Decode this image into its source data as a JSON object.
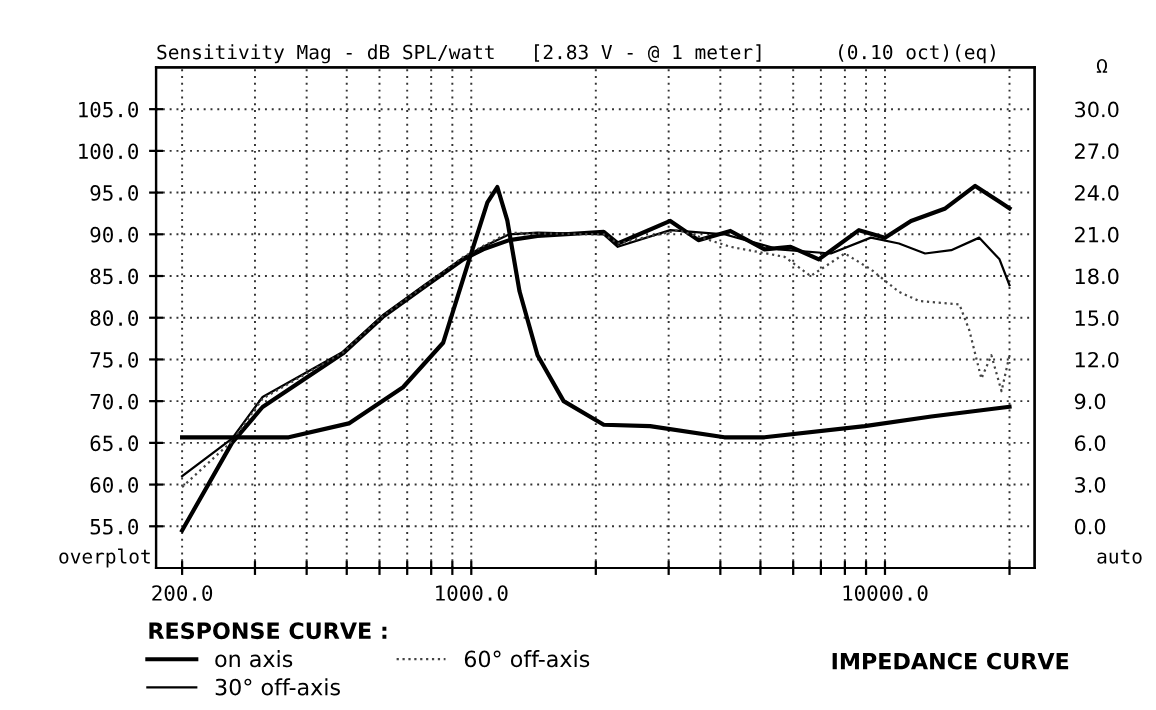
{
  "chart_data": {
    "type": "line",
    "title": "Sensitivity Mag - dB SPL/watt   [2.83 V - @ 1 meter]      (0.10 oct)(eq)",
    "legend_title": "RESPONSE CURVE :",
    "annotations": [
      "overplot",
      "auto",
      "Ω",
      "IMPEDANCE CURVE"
    ],
    "log": "x",
    "xlim": [
      173,
      23000
    ],
    "ylim": [
      50,
      110
    ],
    "xticks": [
      {
        "value": 200,
        "label": "200.0"
      },
      {
        "value": 300,
        "label": null
      },
      {
        "value": 400,
        "label": null
      },
      {
        "value": 500,
        "label": null
      },
      {
        "value": 600,
        "label": null
      },
      {
        "value": 700,
        "label": null
      },
      {
        "value": 800,
        "label": null
      },
      {
        "value": 900,
        "label": null
      },
      {
        "value": 1000,
        "label": "1000.0"
      },
      {
        "value": 2000,
        "label": null
      },
      {
        "value": 3000,
        "label": null
      },
      {
        "value": 4000,
        "label": null
      },
      {
        "value": 5000,
        "label": null
      },
      {
        "value": 6000,
        "label": null
      },
      {
        "value": 7000,
        "label": null
      },
      {
        "value": 8000,
        "label": null
      },
      {
        "value": 9000,
        "label": null
      },
      {
        "value": 10000,
        "label": "10000.0"
      },
      {
        "value": 20000,
        "label": null
      }
    ],
    "yticks": [
      {
        "value": 55,
        "label": "55.0"
      },
      {
        "value": 60,
        "label": "60.0"
      },
      {
        "value": 65,
        "label": "65.0"
      },
      {
        "value": 70,
        "label": "70.0"
      },
      {
        "value": 75,
        "label": "75.0"
      },
      {
        "value": 80,
        "label": "80.0"
      },
      {
        "value": 85,
        "label": "85.0"
      },
      {
        "value": 90,
        "label": "90.0"
      },
      {
        "value": 95,
        "label": "95.0"
      },
      {
        "value": 100,
        "label": "100.0"
      },
      {
        "value": 105,
        "label": "105.0"
      }
    ],
    "y2lim": [
      -3,
      33
    ],
    "y2ticks": [
      {
        "value": 0,
        "label": "0.0"
      },
      {
        "value": 3,
        "label": "3.0"
      },
      {
        "value": 6,
        "label": "6.0"
      },
      {
        "value": 9,
        "label": "9.0"
      },
      {
        "value": 12,
        "label": "12.0"
      },
      {
        "value": 15,
        "label": "15.0"
      },
      {
        "value": 18,
        "label": "18.0"
      },
      {
        "value": 21,
        "label": "21.0"
      },
      {
        "value": 24,
        "label": "24.0"
      },
      {
        "value": 27,
        "label": "27.0"
      },
      {
        "value": 30,
        "label": "30.0"
      }
    ],
    "grid": true,
    "legend": "bottom left",
    "marker": "none",
    "series": [
      {
        "name": "on axis",
        "color": "#000000",
        "line_style": "solid",
        "x": [
          200,
          264,
          313,
          489,
          611,
          765,
          957,
          1069,
          1236,
          1446,
          2090,
          2260,
          3027,
          3540,
          4230,
          5115,
          5915,
          6920,
          8650,
          10000,
          11560,
          13990,
          16520,
          18920,
          20000
        ],
        "values": [
          54.5,
          65,
          69.3,
          75.7,
          80.1,
          83.6,
          87.0,
          88.2,
          89.3,
          89.8,
          90.3,
          88.9,
          91.6,
          89.3,
          90.4,
          88.2,
          88.5,
          87.0,
          90.5,
          89.6,
          91.6,
          93.1,
          95.8,
          93.9,
          93.1
        ]
      },
      {
        "name": "30° off-axis",
        "color": "#000000",
        "line_style": "solid",
        "x": [
          200,
          264,
          313,
          489,
          611,
          765,
          957,
          1069,
          1236,
          1446,
          2090,
          2260,
          3027,
          4090,
          5532,
          7400,
          9245,
          10810,
          12500,
          14460,
          16900,
          18920,
          20000
        ],
        "values": [
          61.0,
          65.5,
          70.5,
          75.9,
          80.3,
          83.8,
          87.2,
          88.5,
          90.0,
          90.2,
          90.0,
          88.5,
          90.5,
          90.0,
          88.2,
          87.7,
          89.6,
          88.9,
          87.7,
          88.1,
          89.6,
          87.0,
          83.9
        ]
      },
      {
        "name": "60° off-axis",
        "color": "#444444",
        "line_style": "dotted",
        "x": [
          200,
          264,
          313,
          489,
          611,
          765,
          957,
          1069,
          1236,
          1446,
          2090,
          2260,
          3162,
          4230,
          5720,
          6610,
          8000,
          9245,
          10810,
          12100,
          15130,
          15990,
          17100,
          18080,
          19130,
          20000
        ],
        "values": [
          59.7,
          65.2,
          70.3,
          75.8,
          80.2,
          83.7,
          87.3,
          88.6,
          90.2,
          90.1,
          90.0,
          88.9,
          90.5,
          88.5,
          87.3,
          85.0,
          87.7,
          85.8,
          83.1,
          82.0,
          81.6,
          78.5,
          72.7,
          75.5,
          71.2,
          75.5
        ]
      },
      {
        "color": "#000000",
        "line_style": "solid",
        "axis": "y2",
        "x": [
          200,
          362,
          506,
          684,
          855,
          989,
          1094,
          1156,
          1222,
          1308,
          1446,
          1672,
          2090,
          2705,
          4090,
          5115,
          8935,
          12940,
          20000
        ],
        "values": [
          6.4,
          6.4,
          7.4,
          10.0,
          13.2,
          19.2,
          23.3,
          24.4,
          22.0,
          16.9,
          12.3,
          9.0,
          7.3,
          7.2,
          6.4,
          6.4,
          7.2,
          7.9,
          8.6
        ]
      }
    ]
  }
}
